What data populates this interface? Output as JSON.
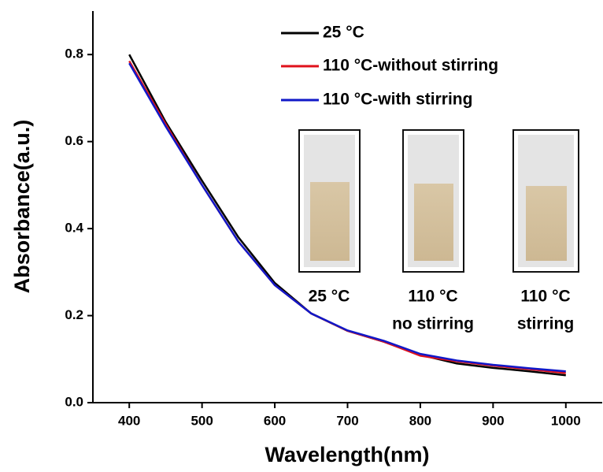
{
  "chart_data": {
    "type": "line",
    "x_label": "Wavelength(nm)",
    "y_label": "Absorbance(a.u.)",
    "x": [
      400,
      450,
      500,
      550,
      600,
      650,
      700,
      750,
      800,
      850,
      900,
      950,
      1000
    ],
    "series": [
      {
        "name": "25 °C",
        "color": "#000000",
        "values": [
          0.8,
          0.645,
          0.51,
          0.38,
          0.275,
          0.205,
          0.165,
          0.14,
          0.11,
          0.09,
          0.08,
          0.072,
          0.063
        ]
      },
      {
        "name": "110 °C-without stirring",
        "color": "#e0101a",
        "values": [
          0.785,
          0.64,
          0.5,
          0.37,
          0.27,
          0.205,
          0.165,
          0.14,
          0.108,
          0.095,
          0.085,
          0.077,
          0.068
        ]
      },
      {
        "name": "110 °C-with stirring",
        "color": "#1018c8",
        "values": [
          0.78,
          0.635,
          0.5,
          0.37,
          0.27,
          0.205,
          0.166,
          0.142,
          0.112,
          0.097,
          0.087,
          0.079,
          0.072
        ]
      }
    ],
    "xlim": [
      350,
      1050
    ],
    "ylim": [
      0,
      0.9
    ],
    "xticks": [
      400,
      500,
      600,
      700,
      800,
      900,
      1000
    ],
    "yticks": [
      {
        "value": 0,
        "label": "0.0"
      },
      0.2,
      0.4,
      0.6,
      0.8
    ],
    "legend": "upper right",
    "inset_labels": [
      [
        "25 °C"
      ],
      [
        "110 °C",
        "no stirring"
      ],
      [
        "110 °C",
        "stirring"
      ]
    ]
  }
}
